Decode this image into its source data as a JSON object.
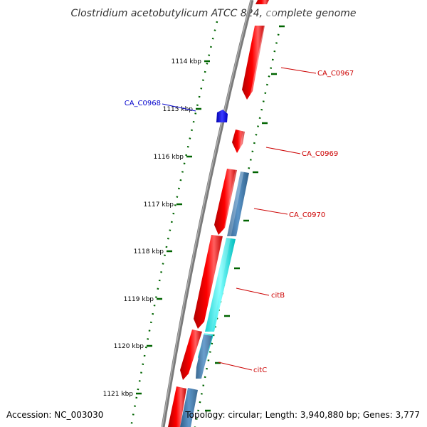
{
  "title": "Clostridium acetobutylicum ATCC 824, complete genome",
  "footer": {
    "accession": "Accession: NC_003030",
    "topology": "Topology: circular; Length: 3,940,880 bp; Genes: 3,777"
  },
  "ticks": [
    {
      "kbp": 1114,
      "label": "1114 kbp"
    },
    {
      "kbp": 1115,
      "label": "1115 kbp"
    },
    {
      "kbp": 1116,
      "label": "1116 kbp"
    },
    {
      "kbp": 1117,
      "label": "1117 kbp"
    },
    {
      "kbp": 1118,
      "label": "1118 kbp"
    },
    {
      "kbp": 1119,
      "label": "1119 kbp"
    },
    {
      "kbp": 1120,
      "label": "1120 kbp"
    },
    {
      "kbp": 1121,
      "label": "1121 kbp"
    }
  ],
  "genes": [
    {
      "name": "CA_C0967",
      "color": "#cc0000"
    },
    {
      "name": "CA_C0968",
      "color": "#0000cc"
    },
    {
      "name": "CA_C0969",
      "color": "#cc0000"
    },
    {
      "name": "CA_C0970",
      "color": "#cc0000"
    },
    {
      "name": "citB",
      "color": "#cc0000"
    },
    {
      "name": "citC",
      "color": "#cc0000"
    }
  ],
  "colors": {
    "gene_red": "#ff0000",
    "gene_blue": "#0000ff",
    "gene_steel": "#4682b4",
    "gene_cyan": "#00ffff",
    "ruler_green": "#006400",
    "backbone": "#808080"
  }
}
